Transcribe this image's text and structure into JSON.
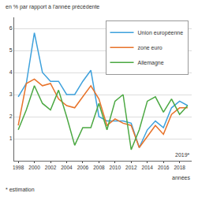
{
  "chart_data": {
    "type": "line",
    "ylabel": "en % par rapport à l'année précédente",
    "xlabel": "années",
    "annotations": [
      "2019*",
      "* estimation"
    ],
    "x": [
      1998,
      1999,
      2000,
      2001,
      2002,
      2003,
      2004,
      2005,
      2006,
      2007,
      2008,
      2009,
      2010,
      2011,
      2012,
      2013,
      2014,
      2015,
      2016,
      2017,
      2018,
      2019
    ],
    "series": [
      {
        "name": "Union européenne",
        "color": "#3ea1dc",
        "values": [
          2.9,
          3.5,
          5.8,
          4.0,
          3.6,
          3.6,
          3.0,
          3.0,
          3.6,
          4.1,
          2.0,
          1.8,
          1.8,
          1.8,
          1.7,
          0.6,
          1.4,
          1.8,
          1.5,
          2.4,
          2.7,
          2.5
        ]
      },
      {
        "name": "zone euro",
        "color": "#e8732a",
        "values": [
          1.6,
          3.5,
          3.7,
          3.4,
          3.5,
          2.8,
          2.5,
          2.4,
          2.9,
          3.4,
          2.8,
          1.6,
          1.9,
          1.7,
          1.6,
          0.6,
          1.1,
          1.6,
          1.2,
          2.1,
          2.4,
          2.4
        ]
      },
      {
        "name": "Allemagne",
        "color": "#4ba842",
        "values": [
          1.4,
          2.3,
          3.4,
          2.6,
          2.3,
          3.2,
          2.0,
          0.7,
          1.5,
          1.5,
          2.6,
          1.4,
          2.7,
          3.0,
          0.5,
          1.4,
          2.7,
          2.9,
          2.2,
          2.8,
          2.1,
          2.5
        ]
      }
    ],
    "xlim": [
      1997.5,
      2019.5
    ],
    "xticks": [
      1998,
      2000,
      2002,
      2004,
      2006,
      2008,
      2010,
      2012,
      2014,
      2016,
      2018
    ],
    "ylim": [
      0,
      6.5
    ],
    "yticks": [
      1,
      2,
      3,
      4,
      5,
      6
    ],
    "grid": true,
    "legend": "top-right"
  }
}
